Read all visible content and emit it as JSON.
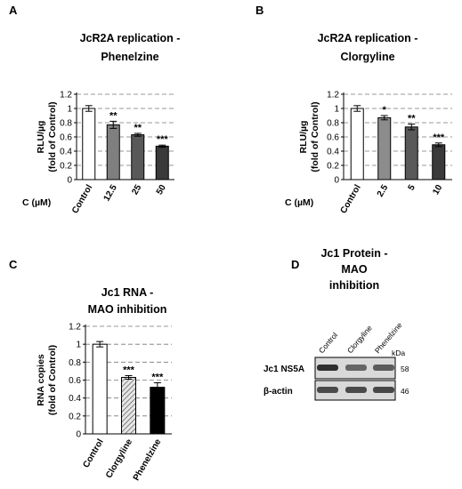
{
  "chart_data": [
    {
      "type": "bar",
      "panel": "A",
      "title_lines": [
        "JcR2A replication -",
        "Phenelzine"
      ],
      "ylabel_lines": [
        "RLU/µg",
        "(fold of Control)"
      ],
      "xlabel": "C (µM)",
      "categories": [
        "Control",
        "12.5",
        "25",
        "50"
      ],
      "values": [
        1.0,
        0.77,
        0.63,
        0.47
      ],
      "errors": [
        0.04,
        0.05,
        0.02,
        0.015
      ],
      "significance": [
        "",
        "**",
        "**",
        "***"
      ],
      "fills": [
        "#ffffff",
        "#7f7f7f",
        "#595959",
        "#3a3a3a"
      ],
      "hatch": [
        false,
        false,
        false,
        false
      ],
      "yticks": [
        "0",
        "0.2",
        "0.4",
        "0.6",
        "0.8",
        "1",
        "1.2"
      ],
      "ylim": [
        0,
        1.2
      ],
      "grid": true
    },
    {
      "type": "bar",
      "panel": "B",
      "title_lines": [
        "JcR2A replication -",
        "Clorgyline"
      ],
      "ylabel_lines": [
        "RLU/µg",
        "(fold of Control)"
      ],
      "xlabel": "C (µM)",
      "categories": [
        "Control",
        "2.5",
        "5",
        "10"
      ],
      "values": [
        1.0,
        0.87,
        0.74,
        0.49
      ],
      "errors": [
        0.04,
        0.03,
        0.04,
        0.025
      ],
      "significance": [
        "",
        "*",
        "**",
        "***"
      ],
      "fills": [
        "#ffffff",
        "#8c8c8c",
        "#595959",
        "#3a3a3a"
      ],
      "hatch": [
        false,
        false,
        false,
        false
      ],
      "yticks": [
        "0",
        "0.2",
        "0.4",
        "0.6",
        "0.8",
        "1",
        "1.2"
      ],
      "ylim": [
        0,
        1.2
      ],
      "grid": true
    },
    {
      "type": "bar",
      "panel": "C",
      "title_lines": [
        "Jc1 RNA -",
        "MAO inhibition"
      ],
      "ylabel_lines": [
        "RNA copies",
        "(fold of Control)"
      ],
      "xlabel": "",
      "categories": [
        "Control",
        "Clorgyline",
        "Phenelzine"
      ],
      "values": [
        1.0,
        0.63,
        0.52
      ],
      "errors": [
        0.03,
        0.02,
        0.05
      ],
      "significance": [
        "",
        "***",
        "***"
      ],
      "fills": [
        "#ffffff",
        "#d0d0d0",
        "#000000"
      ],
      "hatch": [
        false,
        true,
        false
      ],
      "yticks": [
        "0",
        "0.2",
        "0.4",
        "0.6",
        "0.8",
        "1",
        "1.2"
      ],
      "ylim": [
        0,
        1.2
      ],
      "grid": true
    }
  ],
  "blot": {
    "panel": "D",
    "title_lines": [
      "Jc1 Protein -",
      "MAO",
      "inhibition"
    ],
    "lanes": [
      "Control",
      "Clorgyline",
      "Phenelzine"
    ],
    "kda_label": "kDa",
    "rows": [
      {
        "label": "Jc1 NS5A",
        "kda": "58",
        "intensities": [
          0.85,
          0.55,
          0.6
        ]
      },
      {
        "label": "β-actin",
        "kda": "46",
        "intensities": [
          0.7,
          0.7,
          0.72
        ]
      }
    ]
  }
}
